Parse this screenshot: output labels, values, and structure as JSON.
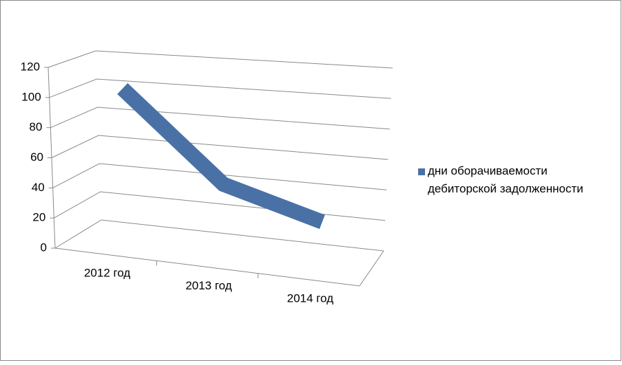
{
  "chart_data": {
    "type": "line3d",
    "categories": [
      "2012 год",
      "2013 год",
      "2014 год"
    ],
    "series": [
      {
        "name": "дни оборачиваемости дебиторской задолженности",
        "color": "#4a71a6",
        "values": [
          103,
          45,
          27
        ]
      }
    ],
    "ylim": [
      0,
      120
    ],
    "yticks": [
      0,
      20,
      40,
      60,
      80,
      100,
      120
    ],
    "grid": true,
    "legend": "right"
  }
}
